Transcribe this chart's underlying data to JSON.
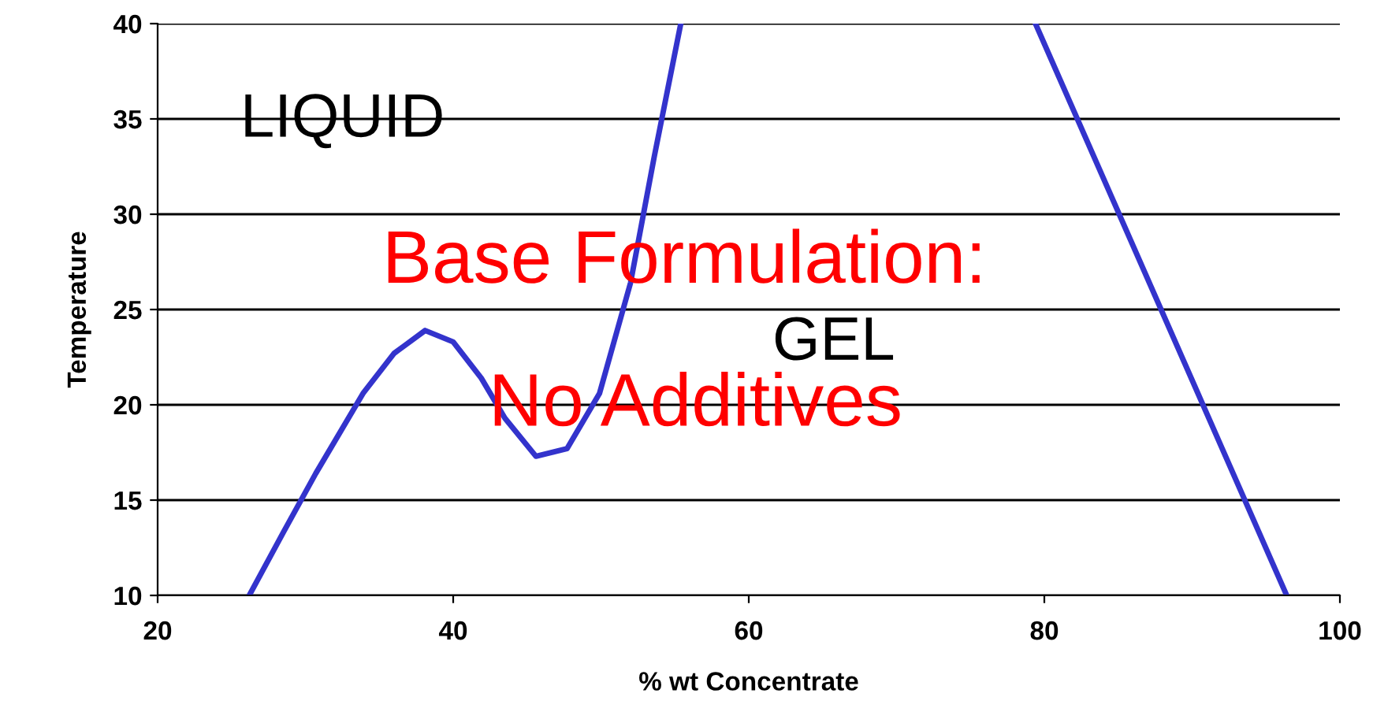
{
  "chart_data": {
    "type": "line",
    "xlabel": "% wt Concentrate",
    "ylabel": "Temperature",
    "series": [
      {
        "color": "#3333cc",
        "x": [
          26.2,
          28.5,
          30.7,
          33.9,
          36.0,
          38.1,
          40.0,
          41.9,
          43.5,
          45.6,
          47.7,
          49.9,
          52.0,
          53.6,
          55.4
        ],
        "values": [
          10,
          13.3,
          16.4,
          20.6,
          22.7,
          23.9,
          23.3,
          21.4,
          19.3,
          17.3,
          17.7,
          20.6,
          26.4,
          33.0,
          40
        ]
      },
      {
        "color": "#3333cc",
        "x": [
          79.4,
          96.4
        ],
        "values": [
          40,
          10
        ]
      }
    ],
    "annotations": [
      "LIQUID",
      "Base Formulation:",
      "No Additives",
      "GEL"
    ],
    "xlim": [
      20,
      100
    ],
    "xticks": [
      20,
      40,
      60,
      80,
      100
    ],
    "ylim": [
      10,
      40
    ],
    "yticks": [
      10,
      15,
      20,
      25,
      30,
      35,
      40
    ],
    "grid": "y",
    "legend": false,
    "marker": "none",
    "line_style": "solid"
  }
}
